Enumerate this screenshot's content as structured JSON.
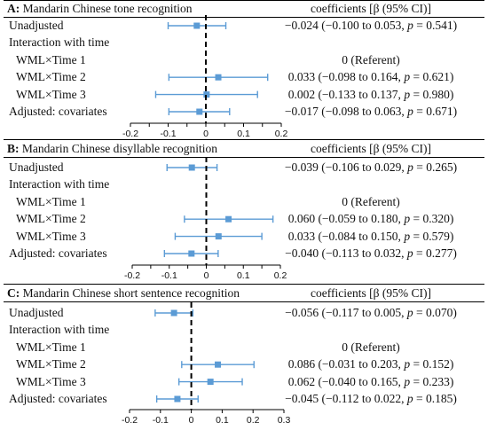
{
  "header": {
    "coef_title": "coefficients [β (95% CI)]"
  },
  "chart_data": [
    {
      "type": "forest",
      "panel_letter": "A:",
      "title": "Mandarin Chinese tone recognition",
      "xlim": [
        -0.2,
        0.2
      ],
      "ticks": [
        "-0.2",
        "-0.15",
        "-0.1",
        "-0.05",
        "0",
        "0.05",
        "0.1",
        "0.15",
        "0.2"
      ],
      "rows": [
        {
          "label": "Unadjusted",
          "est": -0.024,
          "lo": -0.1,
          "hi": 0.053,
          "text": "−0.024 (−0.100 to 0.053, p = 0.541)"
        },
        {
          "label": "Interaction with time",
          "est": null,
          "text": ""
        },
        {
          "label": "WML×Time 1",
          "est": null,
          "text": "0 (Referent)"
        },
        {
          "label": "WML×Time 2",
          "est": 0.033,
          "lo": -0.098,
          "hi": 0.164,
          "text": "0.033 (−0.098 to 0.164, p = 0.621)"
        },
        {
          "label": "WML×Time 3",
          "est": 0.002,
          "lo": -0.133,
          "hi": 0.137,
          "text": "0.002 (−0.133 to 0.137, p = 0.980)"
        },
        {
          "label": "Adjusted: covariates",
          "est": -0.017,
          "lo": -0.098,
          "hi": 0.063,
          "text": "−0.017 (−0.098 to 0.063, p = 0.671)"
        }
      ]
    },
    {
      "type": "forest",
      "panel_letter": "B:",
      "title": "Mandarin Chinese disyllable recognition",
      "xlim": [
        -0.2,
        0.2
      ],
      "ticks": [
        "-0.2",
        "-0.15",
        "-0.1",
        "-0.05",
        "0",
        "0.05",
        "0.1",
        "0.15",
        "0.2"
      ],
      "rows": [
        {
          "label": "Unadjusted",
          "est": -0.039,
          "lo": -0.106,
          "hi": 0.029,
          "text": "−0.039 (−0.106 to 0.029, p = 0.265)"
        },
        {
          "label": "Interaction with time",
          "est": null,
          "text": ""
        },
        {
          "label": "WML×Time 1",
          "est": null,
          "text": "0 (Referent)"
        },
        {
          "label": "WML×Time 2",
          "est": 0.06,
          "lo": -0.059,
          "hi": 0.18,
          "text": "0.060 (−0.059 to 0.180, p = 0.320)"
        },
        {
          "label": "WML×Time 3",
          "est": 0.033,
          "lo": -0.084,
          "hi": 0.15,
          "text": "0.033 (−0.084 to 0.150, p = 0.579)"
        },
        {
          "label": "Adjusted: covariates",
          "est": -0.04,
          "lo": -0.113,
          "hi": 0.032,
          "text": "−0.040 (−0.113 to 0.032, p = 0.277)"
        }
      ]
    },
    {
      "type": "forest",
      "panel_letter": "C:",
      "title": "Mandarin Chinese short sentence recognition",
      "xlim": [
        -0.2,
        0.3
      ],
      "ticks": [
        "-0.2",
        "-0.1",
        "0",
        "0.1",
        "0.2",
        "0.3"
      ],
      "rows": [
        {
          "label": "Unadjusted",
          "est": -0.056,
          "lo": -0.117,
          "hi": 0.005,
          "text": "−0.056 (−0.117 to 0.005, p = 0.070)"
        },
        {
          "label": "Interaction with time",
          "est": null,
          "text": ""
        },
        {
          "label": "WML×Time 1",
          "est": null,
          "text": "0 (Referent)"
        },
        {
          "label": "WML×Time 2",
          "est": 0.086,
          "lo": -0.031,
          "hi": 0.203,
          "text": "0.086 (−0.031 to 0.203, p = 0.152)"
        },
        {
          "label": "WML×Time 3",
          "est": 0.062,
          "lo": -0.04,
          "hi": 0.165,
          "text": "0.062 (−0.040 to 0.165, p = 0.233)"
        },
        {
          "label": "Adjusted: covariates",
          "est": -0.045,
          "lo": -0.112,
          "hi": 0.022,
          "text": "−0.045 (−0.112 to 0.022, p = 0.185)"
        }
      ]
    }
  ],
  "style": {
    "marker_color": "#5B9BD5",
    "ci_color": "#5B9BD5",
    "ref_line_color": "#000000"
  }
}
